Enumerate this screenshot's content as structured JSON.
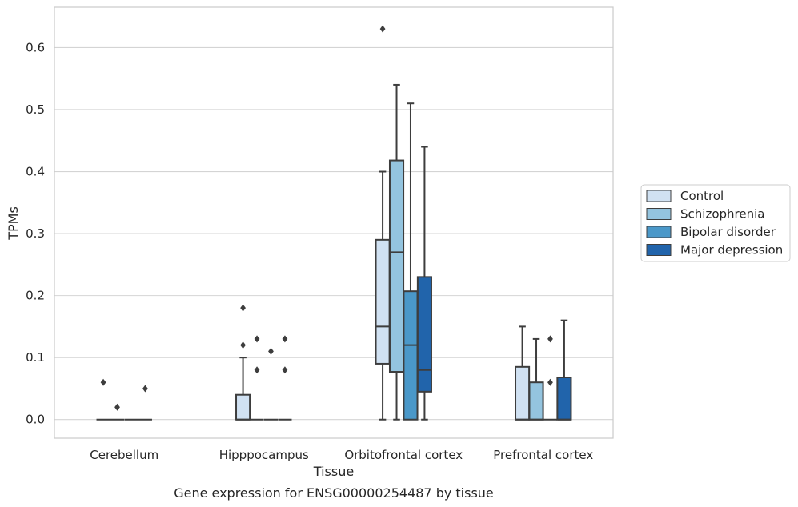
{
  "caption": "Gene expression for ENSG00000254487 by tissue",
  "chart_data": {
    "type": "box",
    "xlabel": "Tissue",
    "ylabel": "TPMs",
    "ylim": [
      -0.03,
      0.665
    ],
    "yticks": [
      0.0,
      0.1,
      0.2,
      0.3,
      0.4,
      0.5,
      0.6
    ],
    "ytick_labels": [
      "0.0",
      "0.1",
      "0.2",
      "0.3",
      "0.4",
      "0.5",
      "0.6"
    ],
    "grid": "horizontal",
    "legend_position": "right",
    "categories": [
      "Cerebellum",
      "Hipppocampus",
      "Orbitofrontal cortex",
      "Prefrontal cortex"
    ],
    "series": [
      {
        "name": "Control",
        "color": "#d0e1f2",
        "boxes": [
          {
            "min": 0,
            "q1": 0,
            "median": 0,
            "q3": 0,
            "max": 0,
            "outliers": [
              0.06
            ]
          },
          {
            "min": 0,
            "q1": 0,
            "median": 0,
            "q3": 0.04,
            "max": 0.1,
            "outliers": [
              0.12,
              0.18
            ]
          },
          {
            "min": 0,
            "q1": 0.09,
            "median": 0.15,
            "q3": 0.29,
            "max": 0.4,
            "outliers": [
              0.63
            ]
          },
          {
            "min": 0,
            "q1": 0,
            "median": 0,
            "q3": 0.085,
            "max": 0.15,
            "outliers": []
          }
        ]
      },
      {
        "name": "Schizophrenia",
        "color": "#94c4df",
        "boxes": [
          {
            "min": 0,
            "q1": 0,
            "median": 0,
            "q3": 0,
            "max": 0,
            "outliers": [
              0.02
            ]
          },
          {
            "min": 0,
            "q1": 0,
            "median": 0,
            "q3": 0,
            "max": 0,
            "outliers": [
              0.08,
              0.13
            ]
          },
          {
            "min": 0,
            "q1": 0.077,
            "median": 0.27,
            "q3": 0.418,
            "max": 0.54,
            "outliers": []
          },
          {
            "min": 0,
            "q1": 0,
            "median": 0,
            "q3": 0.06,
            "max": 0.13,
            "outliers": []
          }
        ]
      },
      {
        "name": "Bipolar disorder",
        "color": "#4a98c9",
        "boxes": [
          {
            "min": 0,
            "q1": 0,
            "median": 0,
            "q3": 0,
            "max": 0,
            "outliers": []
          },
          {
            "min": 0,
            "q1": 0,
            "median": 0,
            "q3": 0,
            "max": 0,
            "outliers": [
              0.11
            ]
          },
          {
            "min": 0,
            "q1": 0,
            "median": 0.12,
            "q3": 0.207,
            "max": 0.51,
            "outliers": []
          },
          {
            "min": 0,
            "q1": 0,
            "median": 0,
            "q3": 0,
            "max": 0,
            "outliers": [
              0.06,
              0.13
            ]
          }
        ]
      },
      {
        "name": "Major depression",
        "color": "#2164ab",
        "boxes": [
          {
            "min": 0,
            "q1": 0,
            "median": 0,
            "q3": 0,
            "max": 0,
            "outliers": [
              0.05
            ]
          },
          {
            "min": 0,
            "q1": 0,
            "median": 0,
            "q3": 0,
            "max": 0,
            "outliers": [
              0.08,
              0.13
            ]
          },
          {
            "min": 0,
            "q1": 0.045,
            "median": 0.08,
            "q3": 0.23,
            "max": 0.44,
            "outliers": []
          },
          {
            "min": 0,
            "q1": 0,
            "median": 0,
            "q3": 0.068,
            "max": 0.16,
            "outliers": []
          }
        ]
      }
    ]
  }
}
